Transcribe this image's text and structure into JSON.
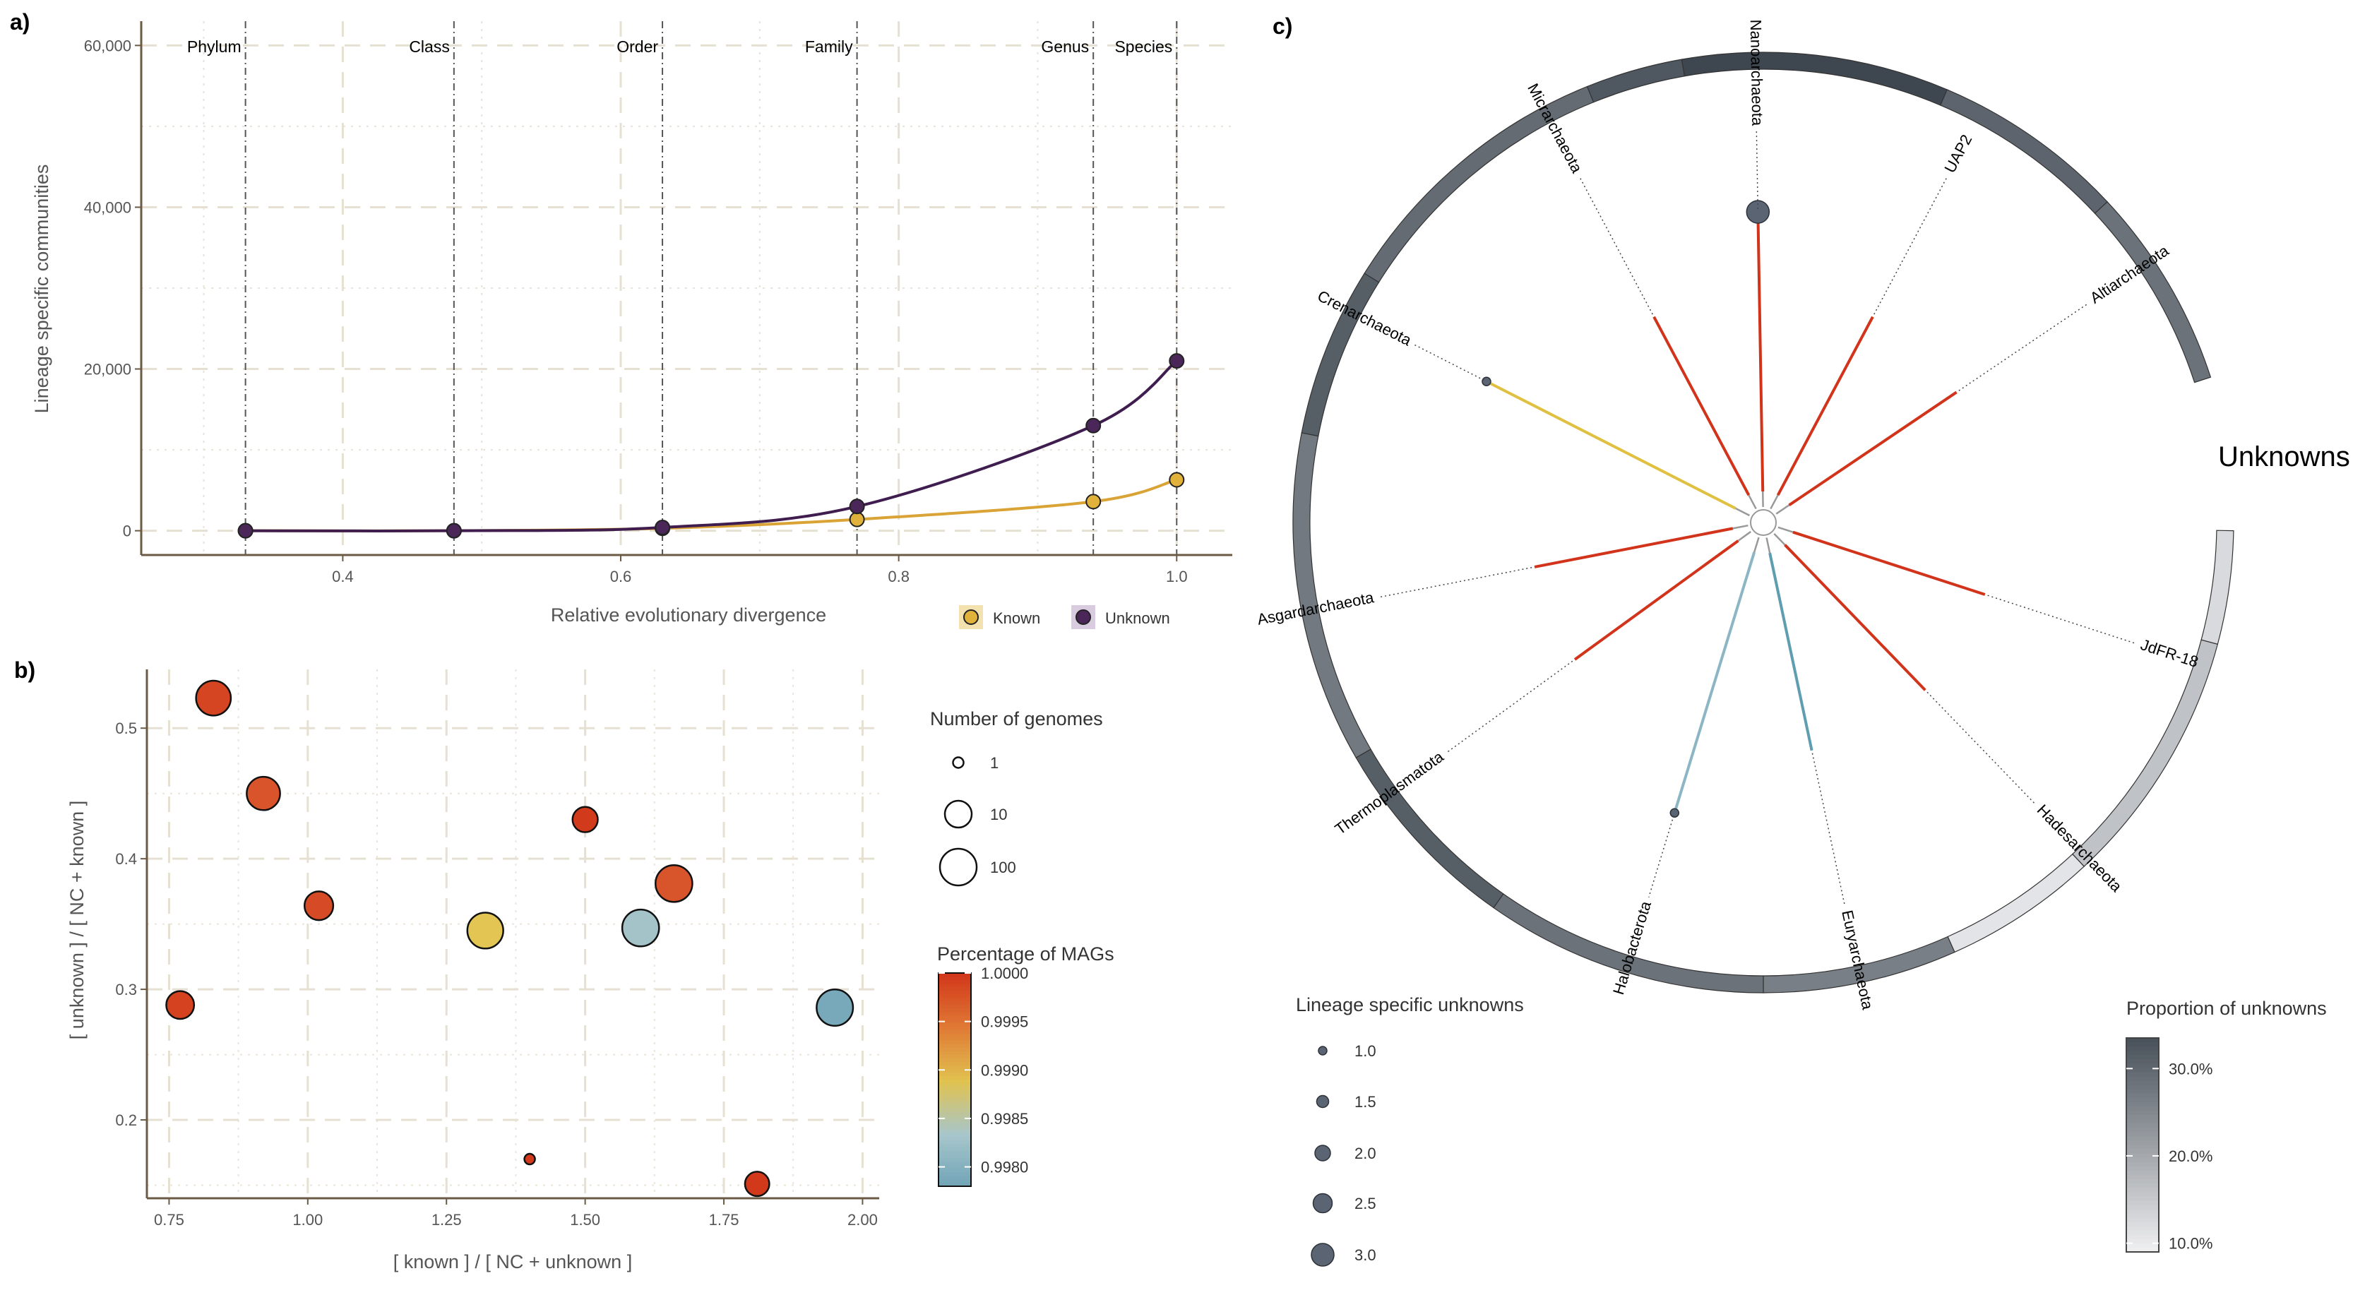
{
  "panels": {
    "a": "a)",
    "b": "b)",
    "c": "c)"
  },
  "colors": {
    "known": "#e0b23c",
    "unknown": "#4b2659",
    "known_line": "#d9a335",
    "unknown_line": "#3f1e4f",
    "branch_red": "#d1331b",
    "branch_gold": "#e0c040",
    "branch_blue_light": "#8db6c4",
    "branch_blue": "#5f9db0"
  },
  "chart_data": [
    {
      "id": "a",
      "type": "line",
      "xlabel": "Relative evolutionary divergence",
      "ylabel": "Lineage specific communities",
      "xlim": [
        0.255,
        1.04
      ],
      "ylim": [
        -3000,
        63000
      ],
      "x_ticks": [
        0.4,
        0.6,
        0.8,
        1.0
      ],
      "x_tick_labels": [
        "0.4",
        "0.6",
        "0.8",
        "1.0"
      ],
      "y_ticks": [
        0,
        20000,
        40000,
        60000
      ],
      "y_tick_labels": [
        "0",
        "20,000",
        "40,000",
        "60,000"
      ],
      "ranks": [
        {
          "name": "Phylum",
          "x": 0.33
        },
        {
          "name": "Class",
          "x": 0.48
        },
        {
          "name": "Order",
          "x": 0.63
        },
        {
          "name": "Family",
          "x": 0.77
        },
        {
          "name": "Genus",
          "x": 0.94
        },
        {
          "name": "Species",
          "x": 1.0
        }
      ],
      "series": [
        {
          "name": "Known",
          "color": "#e0b23c",
          "x": [
            0.33,
            0.48,
            0.63,
            0.77,
            0.94,
            1.0
          ],
          "y": [
            0,
            0,
            300,
            1400,
            3600,
            6300
          ]
        },
        {
          "name": "Unknown",
          "color": "#4b2659",
          "x": [
            0.33,
            0.48,
            0.63,
            0.77,
            0.94,
            1.0
          ],
          "y": [
            0,
            0,
            400,
            3000,
            13000,
            21000
          ]
        }
      ],
      "legend": {
        "position": "bottom-right",
        "items": [
          "Known",
          "Unknown"
        ]
      },
      "grid": true
    },
    {
      "id": "b",
      "type": "scatter",
      "xlabel": "[ known ] / [ NC + unknown ]",
      "ylabel": "[ unknown ] / [ NC + known ]",
      "xlim": [
        0.71,
        2.03
      ],
      "ylim": [
        0.14,
        0.545
      ],
      "x_ticks": [
        0.75,
        1.0,
        1.25,
        1.5,
        1.75,
        2.0
      ],
      "x_tick_labels": [
        "0.75",
        "1.00",
        "1.25",
        "1.50",
        "1.75",
        "2.00"
      ],
      "y_ticks": [
        0.2,
        0.3,
        0.4,
        0.5
      ],
      "y_tick_labels": [
        "0.2",
        "0.3",
        "0.4",
        "0.5"
      ],
      "points": [
        {
          "x": 0.83,
          "y": 0.523,
          "genomes": 40,
          "mags": 1.0,
          "color": "#d64522"
        },
        {
          "x": 0.92,
          "y": 0.45,
          "genomes": 30,
          "mags": 0.9999,
          "color": "#d9542a"
        },
        {
          "x": 1.02,
          "y": 0.364,
          "genomes": 12,
          "mags": 0.9999,
          "color": "#d64a26"
        },
        {
          "x": 0.77,
          "y": 0.288,
          "genomes": 10,
          "mags": 1.0,
          "color": "#d44220"
        },
        {
          "x": 1.32,
          "y": 0.345,
          "genomes": 50,
          "mags": 0.99905,
          "color": "#e2c553"
        },
        {
          "x": 1.5,
          "y": 0.43,
          "genomes": 6,
          "mags": 1.0,
          "color": "#d23a1c"
        },
        {
          "x": 1.66,
          "y": 0.381,
          "genomes": 60,
          "mags": 0.9998,
          "color": "#d8542b"
        },
        {
          "x": 1.6,
          "y": 0.347,
          "genomes": 60,
          "mags": 0.99835,
          "color": "#a3c3c9"
        },
        {
          "x": 1.95,
          "y": 0.286,
          "genomes": 55,
          "mags": 0.9979,
          "color": "#78a9ba"
        },
        {
          "x": 1.4,
          "y": 0.17,
          "genomes": 1,
          "mags": 1.0,
          "color": "#d33a1c"
        },
        {
          "x": 1.81,
          "y": 0.151,
          "genomes": 5,
          "mags": 1.0,
          "color": "#d2391b"
        }
      ],
      "size_legend": {
        "title": "Number of genomes",
        "values": [
          1,
          10,
          100
        ],
        "labels": [
          "1",
          "10",
          "100"
        ]
      },
      "color_legend": {
        "title": "Percentage of MAGs",
        "min": 0.9978,
        "max": 1.0,
        "ticks": [
          1.0,
          0.9995,
          0.999,
          0.9985,
          0.998
        ],
        "labels": [
          "1.0000",
          "0.9995",
          "0.9990",
          "0.9985",
          "0.9980"
        ]
      },
      "grid": true
    },
    {
      "id": "c",
      "type": "other",
      "ring_title": "Unknowns",
      "taxa": [
        {
          "name": "Nanoarchaeota",
          "angle": -91,
          "branch_color": "#d1331b",
          "lineage_unknowns": 3.0,
          "unknown_proportion": 0.33
        },
        {
          "name": "UAP2",
          "angle": -62,
          "branch_color": "#d1331b",
          "lineage_unknowns": 0,
          "unknown_proportion": 0.27
        },
        {
          "name": "Altiarchaeota",
          "angle": -34,
          "branch_color": "#d1331b",
          "lineage_unknowns": 0,
          "unknown_proportion": 0.28
        },
        {
          "name": "JdFR-18",
          "angle": 18,
          "branch_color": "#d1331b",
          "lineage_unknowns": 0,
          "unknown_proportion": 0.15
        },
        {
          "name": "Hadesarchaeota",
          "angle": 46,
          "branch_color": "#d1331b",
          "lineage_unknowns": 0,
          "unknown_proportion": 0.12
        },
        {
          "name": "Euryarchaeota",
          "angle": 78,
          "branch_color": "#5f9db0",
          "lineage_unknowns": 0,
          "unknown_proportion": 0.27
        },
        {
          "name": "Halobacterota",
          "angle": 107,
          "branch_color": "#8db6c4",
          "lineage_unknowns": 1.0,
          "unknown_proportion": 0.28
        },
        {
          "name": "Thermoplasmatota",
          "angle": 144,
          "branch_color": "#d1331b",
          "lineage_unknowns": 0,
          "unknown_proportion": 0.27
        },
        {
          "name": "Asgardarchaeota",
          "angle": 169,
          "branch_color": "#d1331b",
          "lineage_unknowns": 0,
          "unknown_proportion": 0.27
        },
        {
          "name": "Crenarchaeota",
          "angle": -153,
          "branch_color": "#e0c040",
          "lineage_unknowns": 1.0,
          "unknown_proportion": 0.26
        },
        {
          "name": "Micrarchaeota",
          "angle": -118,
          "branch_color": "#d1331b",
          "lineage_unknowns": 0,
          "unknown_proportion": 0.32
        }
      ],
      "ring_segments": [
        {
          "from": -112,
          "to": -100,
          "proportion": 0.31
        },
        {
          "from": -100,
          "to": -67,
          "proportion": 0.34
        },
        {
          "from": -67,
          "to": -43,
          "proportion": 0.29
        },
        {
          "from": -43,
          "to": -18,
          "proportion": 0.27
        },
        {
          "from": 1,
          "to": 15,
          "proportion": 0.115
        },
        {
          "from": 15,
          "to": 47,
          "proportion": 0.15
        },
        {
          "from": 47,
          "to": 66,
          "proportion": 0.1
        },
        {
          "from": 66,
          "to": 90,
          "proportion": 0.25
        },
        {
          "from": 90,
          "to": 125,
          "proportion": 0.27
        },
        {
          "from": 125,
          "to": 150,
          "proportion": 0.3
        },
        {
          "from": 150,
          "to": 191,
          "proportion": 0.26
        },
        {
          "from": 191,
          "to": 212,
          "proportion": 0.3
        },
        {
          "from": 212,
          "to": 248,
          "proportion": 0.28
        }
      ],
      "size_legend": {
        "title": "Lineage specific unknowns",
        "values": [
          1.0,
          1.5,
          2.0,
          2.5,
          3.0
        ],
        "labels": [
          "1.0",
          "1.5",
          "2.0",
          "2.5",
          "3.0"
        ]
      },
      "color_legend": {
        "title": "Proportion of unknowns",
        "min": 0.09,
        "max": 0.335,
        "ticks": [
          0.3,
          0.2,
          0.1
        ],
        "labels": [
          "30.0%",
          "20.0%",
          "10.0%"
        ]
      }
    }
  ]
}
